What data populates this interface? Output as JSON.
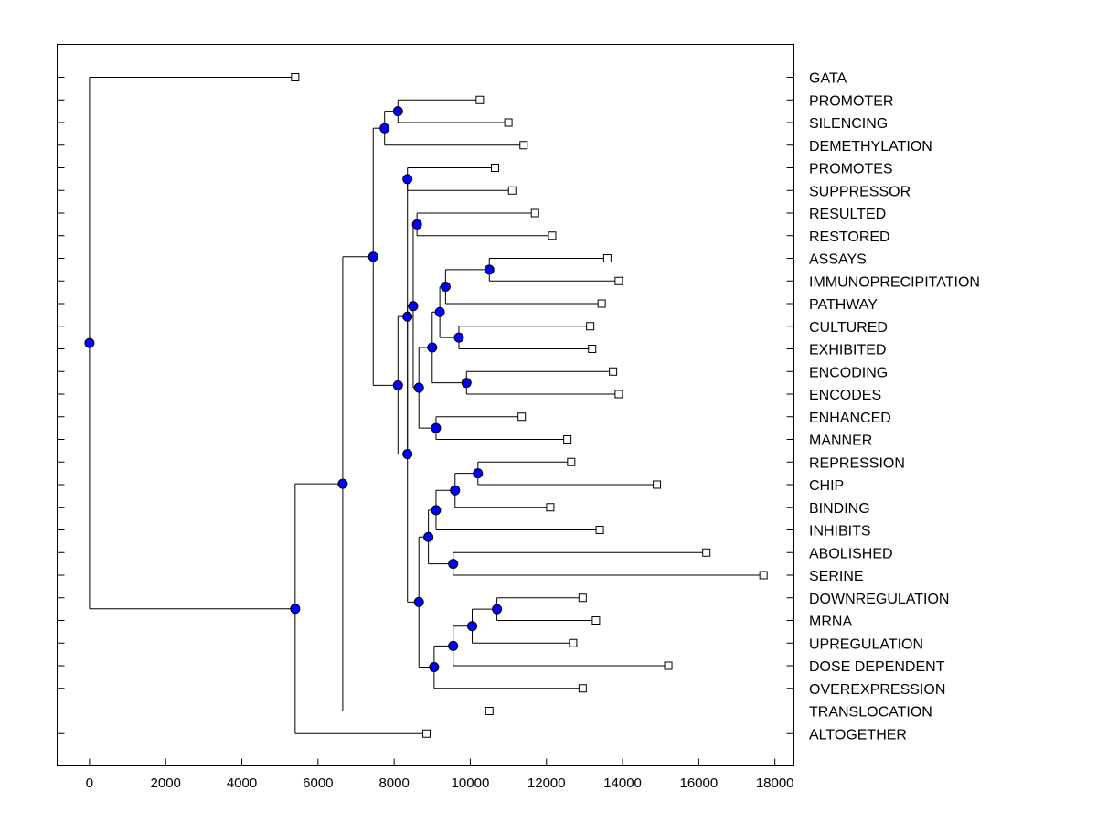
{
  "chart_data": {
    "type": "dendrogram",
    "title": "",
    "xlabel": "",
    "ylabel": "",
    "xlim": [
      -850,
      18500
    ],
    "xticks": [
      0,
      2000,
      4000,
      6000,
      8000,
      10000,
      12000,
      14000,
      16000,
      18000
    ],
    "xtick_labels": [
      "0",
      "2000",
      "4000",
      "6000",
      "8000",
      "10000",
      "12000",
      "14000",
      "16000",
      "18000"
    ],
    "grid": false,
    "leaves": [
      {
        "name": "GATA",
        "value": 5400
      },
      {
        "name": "PROMOTER",
        "value": 10250
      },
      {
        "name": "SILENCING",
        "value": 11000
      },
      {
        "name": "DEMETHYLATION",
        "value": 11400
      },
      {
        "name": "PROMOTES",
        "value": 10650
      },
      {
        "name": "SUPPRESSOR",
        "value": 11100
      },
      {
        "name": "RESULTED",
        "value": 11700
      },
      {
        "name": "RESTORED",
        "value": 12150
      },
      {
        "name": "ASSAYS",
        "value": 13600
      },
      {
        "name": "IMMUNOPRECIPITATION",
        "value": 13900
      },
      {
        "name": "PATHWAY",
        "value": 13450
      },
      {
        "name": "CULTURED",
        "value": 13150
      },
      {
        "name": "EXHIBITED",
        "value": 13200
      },
      {
        "name": "ENCODING",
        "value": 13750
      },
      {
        "name": "ENCODES",
        "value": 13900
      },
      {
        "name": "ENHANCED",
        "value": 11350
      },
      {
        "name": "MANNER",
        "value": 12550
      },
      {
        "name": "REPRESSION",
        "value": 12650
      },
      {
        "name": "CHIP",
        "value": 14900
      },
      {
        "name": "BINDING",
        "value": 12100
      },
      {
        "name": "INHIBITS",
        "value": 13400
      },
      {
        "name": "ABOLISHED",
        "value": 16200
      },
      {
        "name": "SERINE",
        "value": 17700
      },
      {
        "name": "DOWNREGULATION",
        "value": 12950
      },
      {
        "name": "MRNA",
        "value": 13300
      },
      {
        "name": "UPREGULATION",
        "value": 12700
      },
      {
        "name": "DOSE DEPENDENT",
        "value": 15200
      },
      {
        "name": "OVEREXPRESSION",
        "value": 12950
      },
      {
        "name": "TRANSLOCATION",
        "value": 10500
      },
      {
        "name": "ALTOGETHER",
        "value": 8850
      }
    ],
    "merges": [
      {
        "id": "m1",
        "height": 8100,
        "children": [
          "PROMOTER",
          "SILENCING"
        ]
      },
      {
        "id": "m2",
        "height": 7750,
        "children": [
          "m1",
          "DEMETHYLATION"
        ]
      },
      {
        "id": "m3",
        "height": 8350,
        "children": [
          "PROMOTES",
          "SUPPRESSOR"
        ]
      },
      {
        "id": "m4",
        "height": 8600,
        "children": [
          "RESULTED",
          "RESTORED"
        ]
      },
      {
        "id": "m5",
        "height": 10500,
        "children": [
          "ASSAYS",
          "IMMUNOPRECIPITATION"
        ]
      },
      {
        "id": "m6",
        "height": 9350,
        "children": [
          "m5",
          "PATHWAY"
        ]
      },
      {
        "id": "m7",
        "height": 9700,
        "children": [
          "CULTURED",
          "EXHIBITED"
        ]
      },
      {
        "id": "m8",
        "height": 9200,
        "children": [
          "m6",
          "m7"
        ]
      },
      {
        "id": "m9",
        "height": 9900,
        "children": [
          "ENCODING",
          "ENCODES"
        ]
      },
      {
        "id": "m10",
        "height": 9000,
        "children": [
          "m8",
          "m9"
        ]
      },
      {
        "id": "m11",
        "height": 9100,
        "children": [
          "ENHANCED",
          "MANNER"
        ]
      },
      {
        "id": "m12",
        "height": 8650,
        "children": [
          "m10",
          "m11"
        ]
      },
      {
        "id": "m13",
        "height": 8500,
        "children": [
          "m4",
          "m12"
        ]
      },
      {
        "id": "m14",
        "height": 10200,
        "children": [
          "REPRESSION",
          "CHIP"
        ]
      },
      {
        "id": "m15",
        "height": 9600,
        "children": [
          "m14",
          "BINDING"
        ]
      },
      {
        "id": "m16",
        "height": 9100,
        "children": [
          "m15",
          "INHIBITS"
        ]
      },
      {
        "id": "m17",
        "height": 9550,
        "children": [
          "ABOLISHED",
          "SERINE"
        ]
      },
      {
        "id": "m18",
        "height": 8900,
        "children": [
          "m16",
          "m17"
        ]
      },
      {
        "id": "m19",
        "height": 10700,
        "children": [
          "DOWNREGULATION",
          "MRNA"
        ]
      },
      {
        "id": "m20",
        "height": 10050,
        "children": [
          "m19",
          "UPREGULATION"
        ]
      },
      {
        "id": "m21",
        "height": 9550,
        "children": [
          "m20",
          "DOSE DEPENDENT"
        ]
      },
      {
        "id": "m22",
        "height": 9050,
        "children": [
          "m21",
          "OVEREXPRESSION"
        ]
      },
      {
        "id": "m23",
        "height": 8650,
        "children": [
          "m18",
          "m22"
        ]
      },
      {
        "id": "m24",
        "height": 8350,
        "children": [
          "m13",
          "m23"
        ]
      },
      {
        "id": "m25",
        "height": 8350,
        "children": [
          "m3",
          "m24"
        ]
      },
      {
        "id": "m26",
        "height": 8100,
        "children": [
          "m25",
          "m24"
        ]
      },
      {
        "id": "m27",
        "height": 7450,
        "children": [
          "m2",
          "m26"
        ]
      },
      {
        "id": "m28",
        "height": 6650,
        "children": [
          "m27",
          "TRANSLOCATION"
        ]
      },
      {
        "id": "m29",
        "height": 5400,
        "children": [
          "m28",
          "ALTOGETHER"
        ]
      },
      {
        "id": "m30",
        "height": 0,
        "children": [
          "GATA",
          "m29"
        ]
      }
    ],
    "colors": {
      "node_fill": "#0000ff",
      "leaf_fill": "#ffffff",
      "line": "#000000"
    }
  }
}
